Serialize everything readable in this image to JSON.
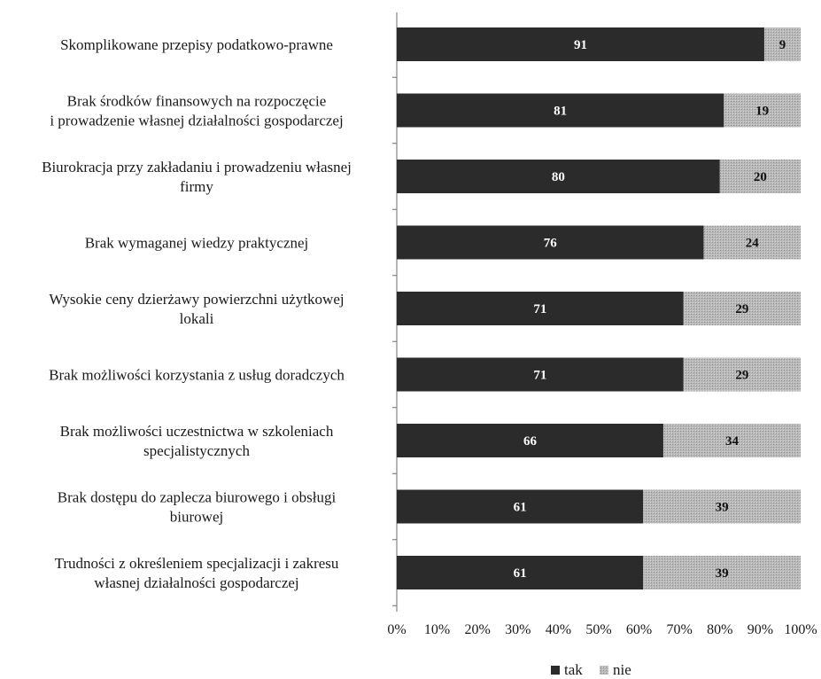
{
  "chart_data": {
    "type": "bar",
    "orientation": "horizontal",
    "stacked": true,
    "percent": true,
    "title": "",
    "categories": [
      [
        "Skomplikowane przepisy podatkowo-prawne"
      ],
      [
        "Brak środków finansowych na rozpoczęcie",
        "i prowadzenie własnej działalności gospodarczej"
      ],
      [
        "Biurokracja przy zakładaniu i prowadzeniu własnej",
        "firmy"
      ],
      [
        "Brak wymaganej wiedzy praktycznej"
      ],
      [
        "Wysokie ceny dzierżawy powierzchni użytkowej",
        "lokali"
      ],
      [
        "Brak możliwości korzystania z usług doradczych"
      ],
      [
        "Brak możliwości uczestnictwa w szkoleniach",
        "specjalistycznych"
      ],
      [
        "Brak dostępu do zaplecza biurowego i obsługi",
        "biurowej"
      ],
      [
        "Trudności z określeniem specjalizacji i zakresu",
        "własnej działalności gospodarczej"
      ]
    ],
    "series": [
      {
        "name": "tak",
        "color": "#2b2b2b",
        "label_color": "#ffffff",
        "values": [
          91,
          81,
          80,
          76,
          71,
          71,
          66,
          61,
          61
        ]
      },
      {
        "name": "nie",
        "color": "#b4b4b4",
        "label_color": "#111111",
        "values": [
          9,
          19,
          20,
          24,
          29,
          29,
          34,
          39,
          39
        ]
      }
    ],
    "x_ticks": [
      "0%",
      "10%",
      "20%",
      "30%",
      "40%",
      "50%",
      "60%",
      "70%",
      "80%",
      "90%",
      "100%"
    ],
    "xlim": [
      0,
      100
    ],
    "legend_position": "bottom-right",
    "grid": false
  }
}
